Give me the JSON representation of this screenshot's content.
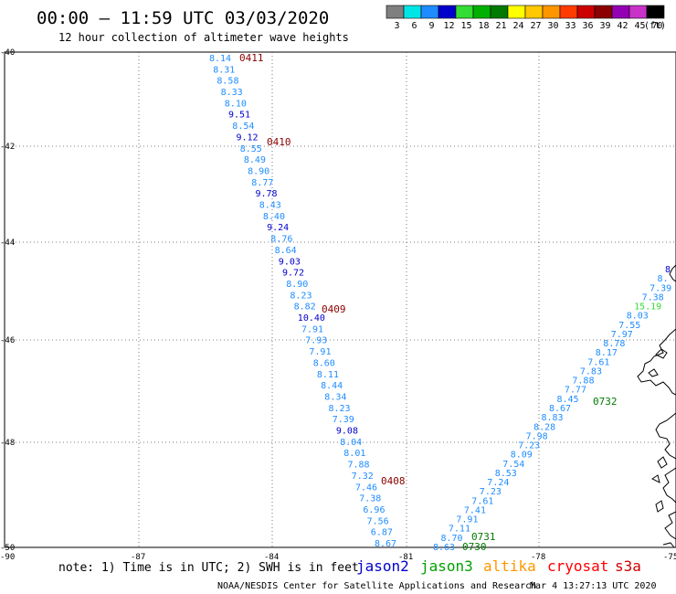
{
  "title": "00:00 – 11:59 UTC 03/03/2020",
  "subtitle": "12 hour collection of altimeter wave heights",
  "legend": {
    "unit": "(ft)",
    "items": [
      {
        "label": "3",
        "color": "#7f7f7f"
      },
      {
        "label": "6",
        "color": "#00e6e6"
      },
      {
        "label": "9",
        "color": "#1e8cff"
      },
      {
        "label": "12",
        "color": "#0000cc"
      },
      {
        "label": "15",
        "color": "#33dd33"
      },
      {
        "label": "18",
        "color": "#00b000"
      },
      {
        "label": "21",
        "color": "#007a00"
      },
      {
        "label": "24",
        "color": "#ffff00"
      },
      {
        "label": "27",
        "color": "#ffc800"
      },
      {
        "label": "30",
        "color": "#ff9600"
      },
      {
        "label": "33",
        "color": "#ff3c00"
      },
      {
        "label": "36",
        "color": "#cc0000"
      },
      {
        "label": "39",
        "color": "#8b0000"
      },
      {
        "label": "42",
        "color": "#9400b4"
      },
      {
        "label": "45",
        "color": "#c832c8"
      },
      {
        "label": "70",
        "color": "#000000"
      }
    ]
  },
  "axes": {
    "lat_labels": [
      "-40",
      "-42",
      "-44",
      "-46",
      "-48",
      "-50"
    ],
    "lon_labels": [
      "-90",
      "-87",
      "-84",
      "-81",
      "-78",
      "-75"
    ]
  },
  "note": "note: 1) Time is in UTC; 2) SWH is in feet",
  "satellites": [
    {
      "name": "jason2",
      "color": "#0000cc"
    },
    {
      "name": "jason3",
      "color": "#00a000"
    },
    {
      "name": "altika",
      "color": "#ff9600"
    },
    {
      "name": "cryosat",
      "color": "#ff0000"
    },
    {
      "name": "s3a",
      "color": "#cc0000"
    }
  ],
  "footer": {
    "credit": "NOAA/NESDIS Center for Satellite Applications and Research",
    "timestamp": "Mar  4 13:27:13 UTC 2020"
  },
  "track1": {
    "times": [
      "0411",
      "0410",
      "0409",
      "0408"
    ],
    "values": [
      {
        "v": "8.14",
        "c": "#1e8cff"
      },
      {
        "v": "8.31",
        "c": "#1e8cff"
      },
      {
        "v": "8.58",
        "c": "#1e8cff"
      },
      {
        "v": "8.33",
        "c": "#1e8cff"
      },
      {
        "v": "8.10",
        "c": "#1e8cff"
      },
      {
        "v": "9.51",
        "c": "#0000cc"
      },
      {
        "v": "8.54",
        "c": "#1e8cff"
      },
      {
        "v": "9.12",
        "c": "#0000cc"
      },
      {
        "v": "8.55",
        "c": "#1e8cff"
      },
      {
        "v": "8.49",
        "c": "#1e8cff"
      },
      {
        "v": "8.90",
        "c": "#1e8cff"
      },
      {
        "v": "8.77",
        "c": "#1e8cff"
      },
      {
        "v": "9.78",
        "c": "#0000cc"
      },
      {
        "v": "8.43",
        "c": "#1e8cff"
      },
      {
        "v": "8.40",
        "c": "#1e8cff"
      },
      {
        "v": "9.24",
        "c": "#0000cc"
      },
      {
        "v": "8.76",
        "c": "#1e8cff"
      },
      {
        "v": "8.64",
        "c": "#1e8cff"
      },
      {
        "v": "9.03",
        "c": "#0000cc"
      },
      {
        "v": "9.72",
        "c": "#0000cc"
      },
      {
        "v": "8.90",
        "c": "#1e8cff"
      },
      {
        "v": "8.23",
        "c": "#1e8cff"
      },
      {
        "v": "8.82",
        "c": "#1e8cff"
      },
      {
        "v": "10.40",
        "c": "#0000cc"
      },
      {
        "v": "7.91",
        "c": "#1e8cff"
      },
      {
        "v": "7.93",
        "c": "#1e8cff"
      },
      {
        "v": "7.91",
        "c": "#1e8cff"
      },
      {
        "v": "8.60",
        "c": "#1e8cff"
      },
      {
        "v": "8.11",
        "c": "#1e8cff"
      },
      {
        "v": "8.44",
        "c": "#1e8cff"
      },
      {
        "v": "8.34",
        "c": "#1e8cff"
      },
      {
        "v": "8.23",
        "c": "#1e8cff"
      },
      {
        "v": "7.39",
        "c": "#1e8cff"
      },
      {
        "v": "9.08",
        "c": "#0000cc"
      },
      {
        "v": "8.04",
        "c": "#1e8cff"
      },
      {
        "v": "8.01",
        "c": "#1e8cff"
      },
      {
        "v": "7.88",
        "c": "#1e8cff"
      },
      {
        "v": "7.32",
        "c": "#1e8cff"
      },
      {
        "v": "7.46",
        "c": "#1e8cff"
      },
      {
        "v": "7.38",
        "c": "#1e8cff"
      },
      {
        "v": "6.96",
        "c": "#1e8cff"
      },
      {
        "v": "7.56",
        "c": "#1e8cff"
      },
      {
        "v": "6.87",
        "c": "#1e8cff"
      },
      {
        "v": "8.67",
        "c": "#1e8cff"
      }
    ]
  },
  "track2": {
    "times": [
      "0731",
      "0730",
      "0732"
    ],
    "values": [
      {
        "v": "8.63",
        "c": "#1e8cff"
      },
      {
        "v": "8.70",
        "c": "#1e8cff"
      },
      {
        "v": "7.11",
        "c": "#1e8cff"
      },
      {
        "v": "7.91",
        "c": "#1e8cff"
      },
      {
        "v": "7.41",
        "c": "#1e8cff"
      },
      {
        "v": "7.61",
        "c": "#1e8cff"
      },
      {
        "v": "7.23",
        "c": "#1e8cff"
      },
      {
        "v": "7.24",
        "c": "#1e8cff"
      },
      {
        "v": "8.53",
        "c": "#1e8cff"
      },
      {
        "v": "7.54",
        "c": "#1e8cff"
      },
      {
        "v": "8.09",
        "c": "#1e8cff"
      },
      {
        "v": "7.23",
        "c": "#1e8cff"
      },
      {
        "v": "7.98",
        "c": "#1e8cff"
      },
      {
        "v": "8.28",
        "c": "#1e8cff"
      },
      {
        "v": "8.83",
        "c": "#1e8cff"
      },
      {
        "v": "8.67",
        "c": "#1e8cff"
      },
      {
        "v": "8.45",
        "c": "#1e8cff"
      },
      {
        "v": "7.77",
        "c": "#1e8cff"
      },
      {
        "v": "7.88",
        "c": "#1e8cff"
      },
      {
        "v": "7.83",
        "c": "#1e8cff"
      },
      {
        "v": "7.61",
        "c": "#1e8cff"
      },
      {
        "v": "8.17",
        "c": "#1e8cff"
      },
      {
        "v": "8.78",
        "c": "#1e8cff"
      },
      {
        "v": "7.97",
        "c": "#1e8cff"
      },
      {
        "v": "7.55",
        "c": "#1e8cff"
      },
      {
        "v": "8.03",
        "c": "#1e8cff"
      },
      {
        "v": "15.19",
        "c": "#33dd33"
      },
      {
        "v": "7.38",
        "c": "#1e8cff"
      },
      {
        "v": "7.39",
        "c": "#1e8cff"
      },
      {
        "v": "8.",
        "c": "#1e8cff"
      },
      {
        "v": "8",
        "c": "#0000cc"
      }
    ]
  }
}
